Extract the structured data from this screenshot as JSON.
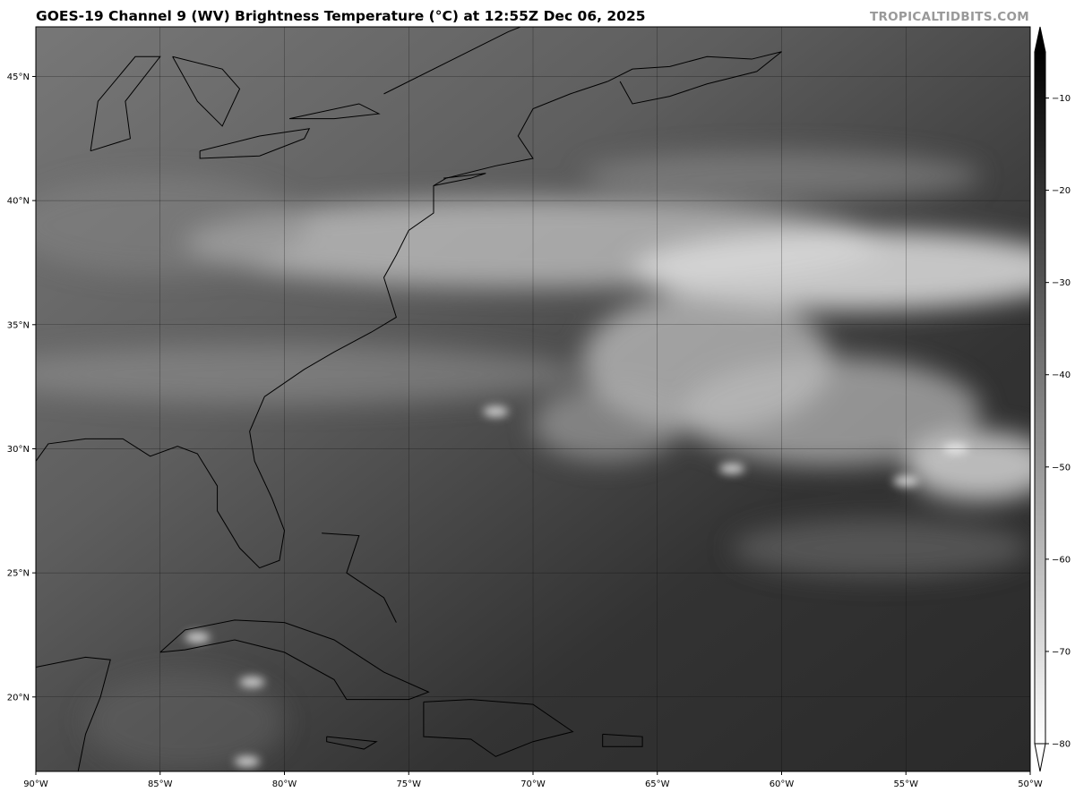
{
  "header": {
    "title": "GOES-19 Channel 9 (WV) Brightness Temperature (°C) at 12:55Z Dec 06, 2025",
    "watermark": "TROPICALTIDBITS.COM"
  },
  "map": {
    "extent": {
      "lon": [
        -90,
        -50
      ],
      "lat": [
        17,
        47
      ]
    },
    "grid": true,
    "x_ticks": [
      {
        "value": -90,
        "label": "90°W"
      },
      {
        "value": -85,
        "label": "85°W"
      },
      {
        "value": -80,
        "label": "80°W"
      },
      {
        "value": -75,
        "label": "75°W"
      },
      {
        "value": -70,
        "label": "70°W"
      },
      {
        "value": -65,
        "label": "65°W"
      },
      {
        "value": -60,
        "label": "60°W"
      },
      {
        "value": -55,
        "label": "55°W"
      },
      {
        "value": -50,
        "label": "50°W"
      }
    ],
    "y_ticks": [
      {
        "value": 45,
        "label": "45°N"
      },
      {
        "value": 40,
        "label": "40°N"
      },
      {
        "value": 35,
        "label": "35°N"
      },
      {
        "value": 30,
        "label": "30°N"
      },
      {
        "value": 25,
        "label": "25°N"
      },
      {
        "value": 20,
        "label": "20°N"
      }
    ]
  },
  "colorbar": {
    "range": [
      -80,
      -5
    ],
    "colormap": "grayscale (white = cold, black = warm)",
    "extend": "both",
    "ticks": [
      {
        "value": -10,
        "label": "−10"
      },
      {
        "value": -20,
        "label": "−20"
      },
      {
        "value": -30,
        "label": "−30"
      },
      {
        "value": -40,
        "label": "−40"
      },
      {
        "value": -50,
        "label": "−50"
      },
      {
        "value": -60,
        "label": "−60"
      },
      {
        "value": -70,
        "label": "−70"
      },
      {
        "value": -80,
        "label": "−80"
      }
    ]
  }
}
